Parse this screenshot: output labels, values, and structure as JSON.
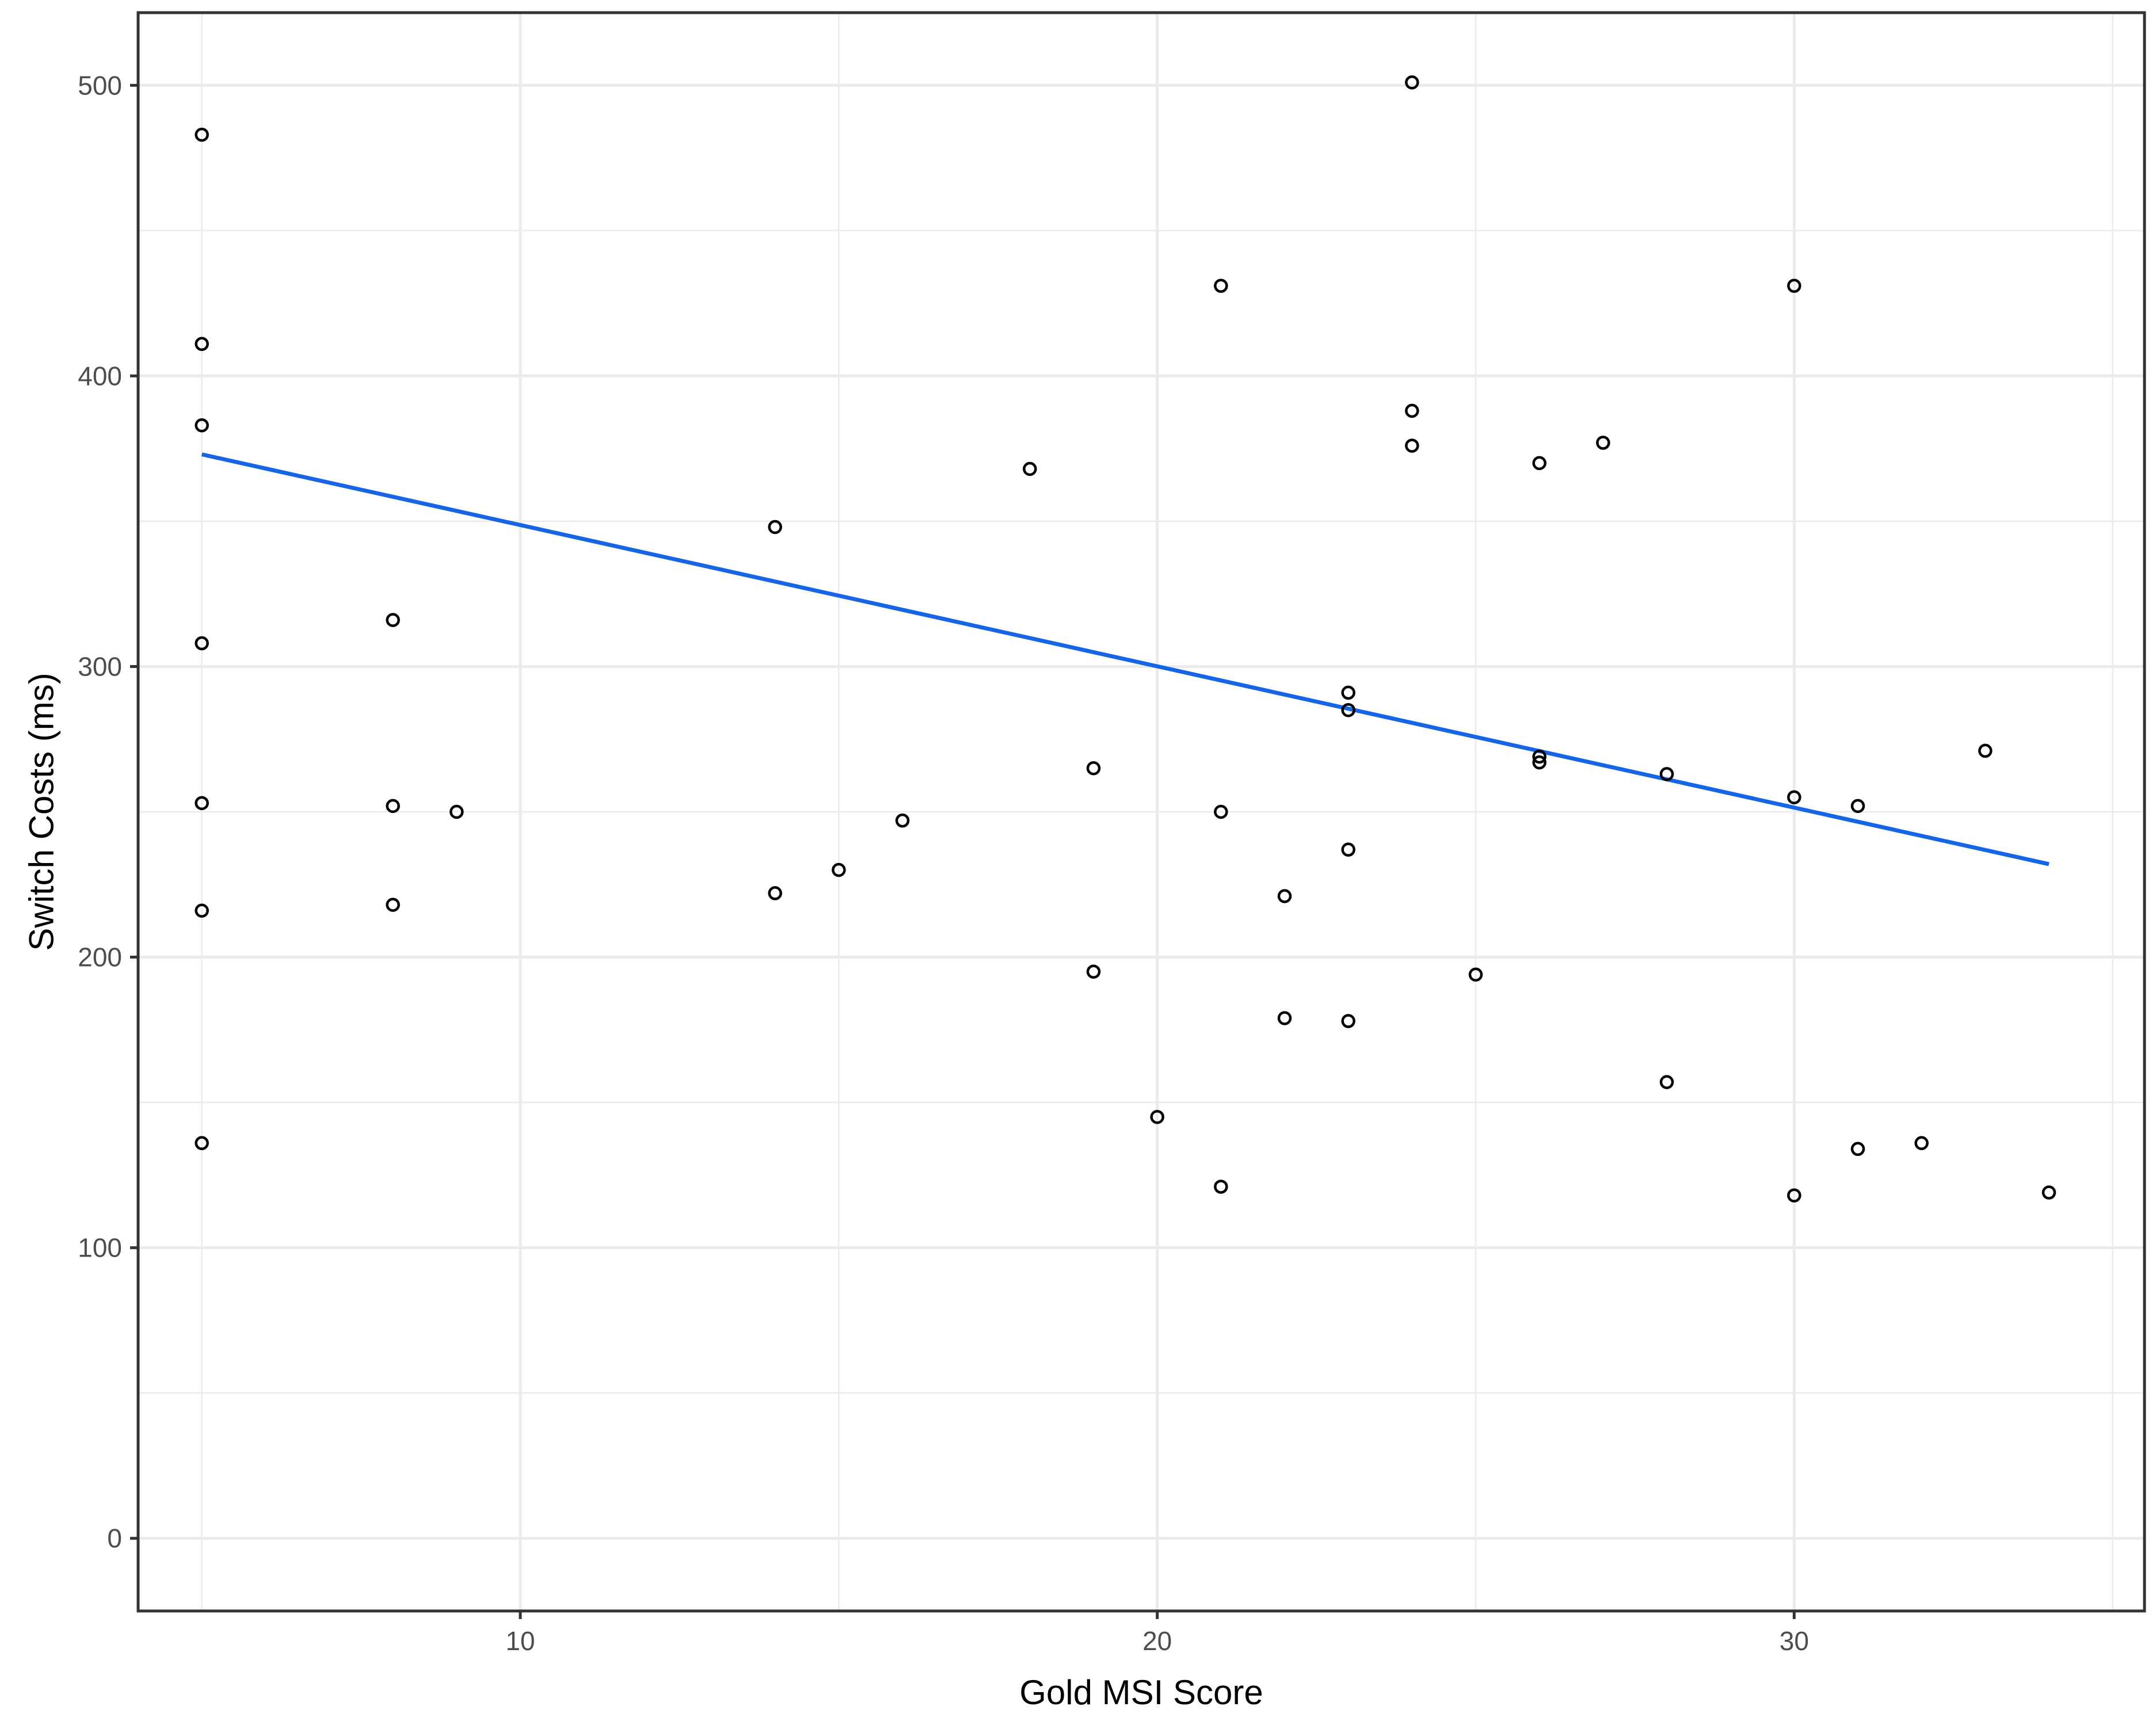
{
  "chart_data": {
    "type": "scatter",
    "title": "",
    "xlabel": "Gold MSI Score",
    "ylabel": "Switch Costs (ms)",
    "xlim": [
      4,
      35.5
    ],
    "ylim": [
      -25,
      525
    ],
    "x_ticks": [
      10,
      20,
      30
    ],
    "y_ticks": [
      0,
      100,
      200,
      300,
      400,
      500
    ],
    "x_tick_labels": [
      "10",
      "20",
      "30"
    ],
    "y_tick_labels": [
      "0",
      "100",
      "200",
      "300",
      "400",
      "500"
    ],
    "grid": true,
    "legend": "none",
    "points": [
      {
        "x": 5,
        "y": 483
      },
      {
        "x": 5,
        "y": 411
      },
      {
        "x": 5,
        "y": 383
      },
      {
        "x": 5,
        "y": 308
      },
      {
        "x": 5,
        "y": 253
      },
      {
        "x": 5,
        "y": 216
      },
      {
        "x": 5,
        "y": 136
      },
      {
        "x": 8,
        "y": 316
      },
      {
        "x": 8,
        "y": 252
      },
      {
        "x": 8,
        "y": 218
      },
      {
        "x": 9,
        "y": 250
      },
      {
        "x": 14,
        "y": 348
      },
      {
        "x": 14,
        "y": 222
      },
      {
        "x": 15,
        "y": 230
      },
      {
        "x": 16,
        "y": 247
      },
      {
        "x": 18,
        "y": 368
      },
      {
        "x": 19,
        "y": 265
      },
      {
        "x": 19,
        "y": 195
      },
      {
        "x": 20,
        "y": 145
      },
      {
        "x": 21,
        "y": 431
      },
      {
        "x": 21,
        "y": 250
      },
      {
        "x": 21,
        "y": 121
      },
      {
        "x": 22,
        "y": 221
      },
      {
        "x": 22,
        "y": 179
      },
      {
        "x": 23,
        "y": 291
      },
      {
        "x": 23,
        "y": 285
      },
      {
        "x": 23,
        "y": 237
      },
      {
        "x": 23,
        "y": 178
      },
      {
        "x": 24,
        "y": 501
      },
      {
        "x": 24,
        "y": 388
      },
      {
        "x": 24,
        "y": 376
      },
      {
        "x": 25,
        "y": 194
      },
      {
        "x": 26,
        "y": 370
      },
      {
        "x": 26,
        "y": 269
      },
      {
        "x": 26,
        "y": 267
      },
      {
        "x": 27,
        "y": 377
      },
      {
        "x": 28,
        "y": 263
      },
      {
        "x": 28,
        "y": 157
      },
      {
        "x": 30,
        "y": 431
      },
      {
        "x": 30,
        "y": 255
      },
      {
        "x": 30,
        "y": 118
      },
      {
        "x": 31,
        "y": 252
      },
      {
        "x": 31,
        "y": 134
      },
      {
        "x": 32,
        "y": 136
      },
      {
        "x": 33,
        "y": 271
      },
      {
        "x": 34,
        "y": 119
      }
    ],
    "fit_line": {
      "x": [
        5,
        34
      ],
      "y": [
        373,
        232
      ]
    },
    "colors": {
      "points": "#000000",
      "fit_line": "#1565E6",
      "grid": "#EBEBEB",
      "panel_border": "#333333",
      "tick_labels": "#4D4D4D",
      "axis_titles": "#000000"
    }
  }
}
